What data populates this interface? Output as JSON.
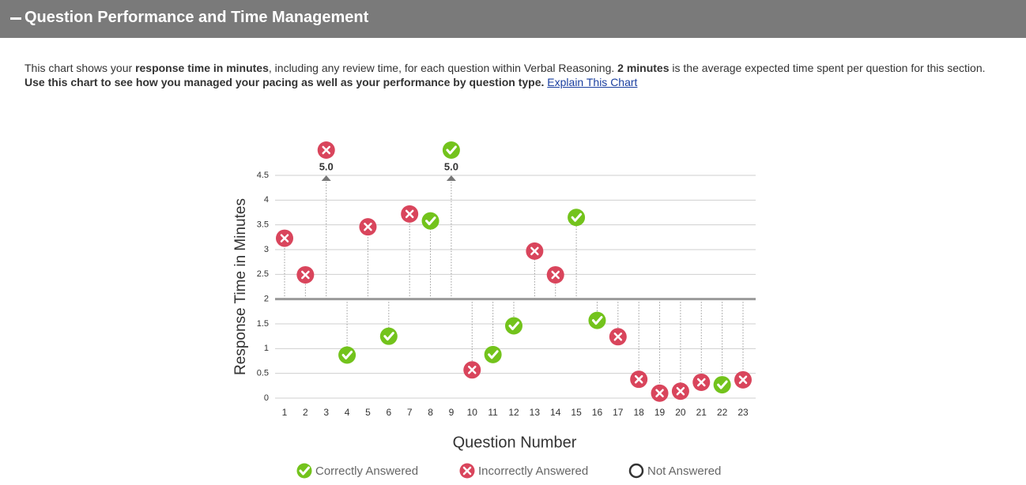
{
  "header": {
    "title": "Question Performance and Time Management"
  },
  "intro": {
    "parts": [
      {
        "text": "This chart shows your "
      },
      {
        "text": "response time in minutes",
        "bold": true
      },
      {
        "text": ", including any review time, for each question within Verbal Reasoning. "
      },
      {
        "text": "2 minutes",
        "bold": true
      },
      {
        "text": " is the average expected time spent per question for this section. "
      },
      {
        "text": "Use this chart to see how you managed your pacing as well as your performance by question type.",
        "bold": true
      }
    ],
    "link": "Explain This Chart"
  },
  "chart_data": {
    "type": "scatter",
    "xlabel": "Question Number",
    "ylabel": "Response Time in Minutes",
    "categories": [
      "1",
      "2",
      "3",
      "4",
      "5",
      "6",
      "7",
      "8",
      "9",
      "10",
      "11",
      "12",
      "13",
      "14",
      "15",
      "16",
      "17",
      "18",
      "19",
      "20",
      "21",
      "22",
      "23"
    ],
    "ylim": [
      0,
      4.5
    ],
    "yticks": [
      0,
      0.5,
      1,
      1.5,
      2,
      2.5,
      3,
      3.5,
      4,
      4.5
    ],
    "average": 2,
    "grid": true,
    "series": [
      {
        "name": "Correctly Answered",
        "color": "#73c31c",
        "values": [
          null,
          null,
          null,
          0.87,
          null,
          1.25,
          null,
          3.58,
          5.0,
          null,
          0.88,
          1.46,
          null,
          null,
          3.65,
          1.57,
          null,
          null,
          null,
          null,
          null,
          0.27,
          null
        ],
        "value_labels": [
          null,
          null,
          null,
          null,
          null,
          null,
          null,
          null,
          "5.0",
          null,
          null,
          null,
          null,
          null,
          null,
          null,
          null,
          null,
          null,
          null,
          null,
          null,
          null
        ]
      },
      {
        "name": "Incorrectly Answered",
        "color": "#d9455c",
        "values": [
          3.23,
          2.49,
          5.0,
          null,
          3.46,
          null,
          3.72,
          null,
          null,
          0.57,
          null,
          null,
          2.97,
          2.49,
          null,
          null,
          1.24,
          0.38,
          0.1,
          0.14,
          0.32,
          null,
          0.37
        ],
        "value_labels": [
          null,
          null,
          "5.0",
          null,
          null,
          null,
          null,
          null,
          null,
          null,
          null,
          null,
          null,
          null,
          null,
          null,
          null,
          null,
          null,
          null,
          null,
          null,
          null
        ]
      },
      {
        "name": "Not Answered",
        "color": "#333333",
        "values": [
          null,
          null,
          null,
          null,
          null,
          null,
          null,
          null,
          null,
          null,
          null,
          null,
          null,
          null,
          null,
          null,
          null,
          null,
          null,
          null,
          null,
          null,
          null
        ]
      }
    ]
  }
}
